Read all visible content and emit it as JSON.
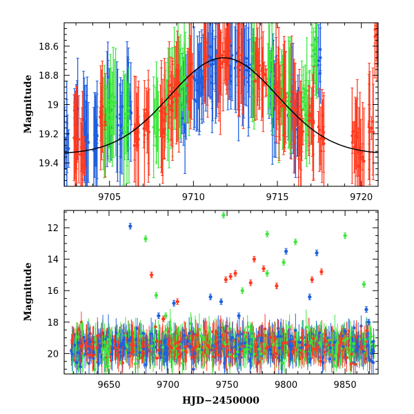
{
  "colors": {
    "blue": "#1f5fe0",
    "green": "#3ee63e",
    "red": "#ff3a1f",
    "curve": "#000000"
  },
  "chart_data": [
    {
      "type": "scatter",
      "title": "",
      "xlabel": "",
      "ylabel": "Magnitude",
      "xlim": [
        9702.3,
        9721.0
      ],
      "ylim": [
        19.56,
        18.44
      ],
      "x_ticks": [
        9705,
        9710,
        9715,
        9720
      ],
      "x_tick_labels": [
        "9705",
        "9710",
        "9715",
        "9720"
      ],
      "y_ticks": [
        18.6,
        18.8,
        19.0,
        19.2,
        19.4
      ],
      "y_tick_labels": [
        "18.6",
        "18.8",
        "19",
        "19.2",
        "19.4"
      ],
      "model_curve": {
        "type": "gaussian",
        "peak_x": 9711.8,
        "peak_mag": 18.68,
        "baseline_mag": 19.34,
        "width": 3.2
      },
      "series": [
        {
          "name": "blue",
          "color": "blue",
          "points": [
            [
              9702.4,
              19.3
            ],
            [
              9703.0,
              19.1
            ],
            [
              9703.6,
              19.2
            ],
            [
              9704.2,
              19.25
            ],
            [
              9705.0,
              19.05
            ],
            [
              9705.6,
              19.15
            ],
            [
              9706.2,
              19.0
            ],
            [
              9709.4,
              19.0
            ],
            [
              9710.2,
              18.85
            ],
            [
              9710.6,
              18.8
            ],
            [
              9711.0,
              18.75
            ],
            [
              9711.4,
              18.7
            ],
            [
              9712.2,
              18.7
            ],
            [
              9712.6,
              18.72
            ],
            [
              9713.0,
              18.75
            ],
            [
              9713.4,
              18.8
            ],
            [
              9714.6,
              18.88
            ],
            [
              9714.8,
              18.95
            ],
            [
              9715.8,
              19.05
            ],
            [
              9716.2,
              19.1
            ],
            [
              9717.4,
              18.7
            ]
          ]
        },
        {
          "name": "green",
          "color": "green",
          "points": [
            [
              9704.8,
              19.1
            ],
            [
              9705.2,
              19.0
            ],
            [
              9706.0,
              19.15
            ],
            [
              9707.8,
              19.1
            ],
            [
              9708.4,
              19.0
            ],
            [
              9708.8,
              18.95
            ],
            [
              9709.2,
              18.85
            ],
            [
              9709.6,
              18.8
            ],
            [
              9713.6,
              18.75
            ],
            [
              9714.6,
              18.8
            ],
            [
              9715.2,
              18.9
            ],
            [
              9715.6,
              18.95
            ],
            [
              9716.6,
              19.0
            ],
            [
              9716.8,
              19.1
            ],
            [
              9717.2,
              18.6
            ]
          ]
        },
        {
          "name": "red",
          "color": "red",
          "points": [
            [
              9703.0,
              19.25
            ],
            [
              9703.4,
              19.35
            ],
            [
              9704.6,
              19.05
            ],
            [
              9706.6,
              19.2
            ],
            [
              9707.2,
              19.15
            ],
            [
              9708.2,
              19.1
            ],
            [
              9708.6,
              18.95
            ],
            [
              9709.0,
              18.9
            ],
            [
              9709.8,
              18.8
            ],
            [
              9710.8,
              18.65
            ],
            [
              9711.6,
              18.7
            ],
            [
              9712.0,
              18.65
            ],
            [
              9712.8,
              18.7
            ],
            [
              9713.8,
              18.78
            ],
            [
              9714.2,
              18.8
            ],
            [
              9715.0,
              18.9
            ],
            [
              9715.4,
              18.95
            ],
            [
              9716.0,
              19.0
            ],
            [
              9716.4,
              19.2
            ],
            [
              9717.0,
              19.1
            ],
            [
              9717.6,
              19.2
            ],
            [
              9719.6,
              19.25
            ],
            [
              9720.0,
              19.3
            ],
            [
              9720.6,
              19.2
            ],
            [
              9720.9,
              18.5
            ]
          ]
        }
      ]
    },
    {
      "type": "scatter",
      "title": "",
      "xlabel": "HJD−2450000",
      "ylabel": "Magnitude",
      "xlim": [
        9612,
        9878
      ],
      "ylim": [
        21.3,
        10.9
      ],
      "x_ticks": [
        9650,
        9700,
        9750,
        9800,
        9850
      ],
      "x_tick_labels": [
        "9650",
        "9700",
        "9750",
        "9800",
        "9850"
      ],
      "y_ticks": [
        12,
        14,
        16,
        18,
        20
      ],
      "y_tick_labels": [
        "12",
        "14",
        "16",
        "18",
        "20"
      ],
      "baseline": {
        "x_range": [
          9618,
          9875
        ],
        "mag": 19.5,
        "scatter": 1.2
      },
      "series": [
        {
          "name": "blue",
          "color": "blue",
          "points": [
            [
              9668,
              11.9
            ],
            [
              9705,
              16.8
            ],
            [
              9745,
              16.7
            ],
            [
              9760,
              17.6
            ],
            [
              9800,
              13.5
            ],
            [
              9820,
              16.4
            ],
            [
              9826,
              13.6
            ],
            [
              9850,
              18.6
            ],
            [
              9868,
              17.2
            ],
            [
              9870,
              18.0
            ],
            [
              9736,
              16.4
            ],
            [
              9692,
              17.6
            ]
          ]
        },
        {
          "name": "green",
          "color": "green",
          "points": [
            [
              9681,
              12.7
            ],
            [
              9698,
              17.6
            ],
            [
              9747,
              11.2
            ],
            [
              9763,
              16.0
            ],
            [
              9784,
              12.4
            ],
            [
              9798,
              14.2
            ],
            [
              9808,
              12.9
            ],
            [
              9850,
              12.5
            ],
            [
              9866,
              15.6
            ],
            [
              9690,
              16.3
            ],
            [
              9784,
              14.9
            ]
          ]
        },
        {
          "name": "red",
          "color": "red",
          "points": [
            [
              9686,
              15.0
            ],
            [
              9708,
              16.7
            ],
            [
              9749,
              15.3
            ],
            [
              9753,
              15.1
            ],
            [
              9757,
              14.9
            ],
            [
              9770,
              15.5
            ],
            [
              9773,
              14.0
            ],
            [
              9781,
              14.6
            ],
            [
              9822,
              15.3
            ],
            [
              9830,
              14.8
            ],
            [
              9696,
              17.8
            ],
            [
              9792,
              15.7
            ]
          ]
        }
      ]
    }
  ]
}
